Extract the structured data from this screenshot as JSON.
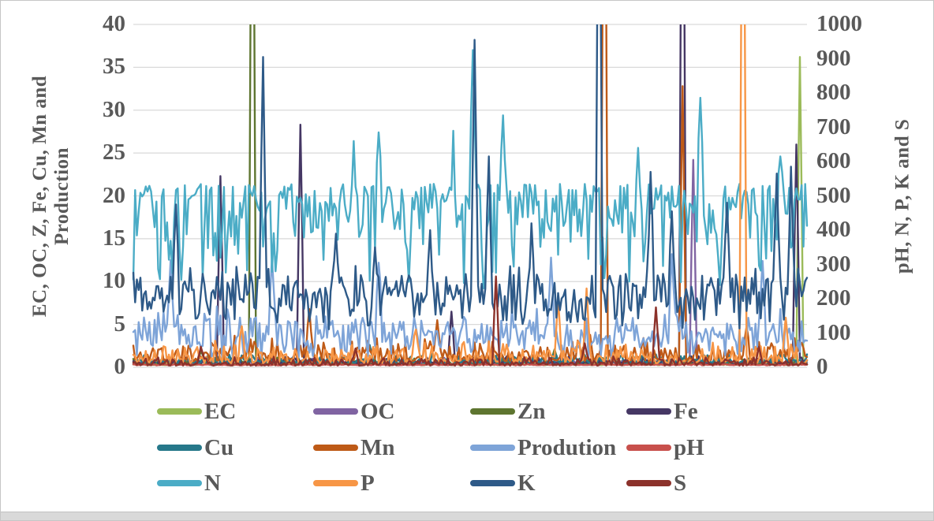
{
  "figure": {
    "background": "#FFFFFF",
    "border_color": "#C6C6C6",
    "bottom_strip_color": "#D9D9D9",
    "axis_text_color": "#595959",
    "grid_color": "#D9D9D9"
  },
  "chart_data": {
    "type": "line",
    "title": "",
    "x_points": 380,
    "grid": {
      "horizontal": true,
      "vertical": false,
      "color": "#D9D9D9"
    },
    "left_axis": {
      "title_line1": "EC, OC, Z, Fe, Cu, Mn and",
      "title_line2": "Production",
      "min": 0,
      "max": 40,
      "step": 5,
      "ticks": [
        40,
        35,
        30,
        25,
        20,
        15,
        10,
        5,
        0
      ]
    },
    "right_axis": {
      "title": "pH, N, P, K and S",
      "min": 0,
      "max": 1000,
      "step": 100,
      "ticks": [
        1000,
        900,
        800,
        700,
        600,
        500,
        400,
        300,
        200,
        100,
        0
      ]
    },
    "legend": {
      "position": "bottom",
      "items": [
        {
          "label": "EC",
          "color": "#9BBB59"
        },
        {
          "label": "OC",
          "color": "#8064A2"
        },
        {
          "label": "Zn",
          "color": "#5E7530"
        },
        {
          "label": "Fe",
          "color": "#453764"
        },
        {
          "label": "Cu",
          "color": "#26788A"
        },
        {
          "label": "Mn",
          "color": "#BE5A17"
        },
        {
          "label": "Prodution",
          "color": "#7EA4D8"
        },
        {
          "label": "pH",
          "color": "#C8504C"
        },
        {
          "label": "N",
          "color": "#4BACC6"
        },
        {
          "label": "P",
          "color": "#F79646"
        },
        {
          "label": "K",
          "color": "#2E5A88"
        },
        {
          "label": "S",
          "color": "#8C322B"
        }
      ]
    },
    "series": [
      {
        "name": "EC",
        "axis": "left",
        "color": "#9BBB59",
        "seed": 101,
        "profile": {
          "dist": "up",
          "base": 0.25,
          "range": 0.7
        },
        "spikes": [
          {
            "x": 0.99,
            "v": 36.2
          }
        ]
      },
      {
        "name": "OC",
        "axis": "left",
        "color": "#8064A2",
        "seed": 202,
        "profile": {
          "dist": "up",
          "base": 0.35,
          "range": 0.8
        },
        "spikes": [
          {
            "x": 0.83,
            "v": 24.2
          }
        ]
      },
      {
        "name": "Zn",
        "axis": "left",
        "color": "#5E7530",
        "seed": 303,
        "profile": {
          "dist": "up",
          "base": 0.3,
          "range": 0.9
        },
        "spikes": [
          {
            "x": 0.176,
            "v": 44,
            "flat": true
          },
          {
            "x": 0.1,
            "v": 1.9
          },
          {
            "x": 0.625,
            "v": 2.1
          }
        ]
      },
      {
        "name": "Fe",
        "axis": "left",
        "color": "#453764",
        "seed": 404,
        "profile": {
          "dist": "up",
          "base": 0.4,
          "range": 1.0
        },
        "spikes": [
          {
            "x": 0.129,
            "v": 22.3
          },
          {
            "x": 0.248,
            "v": 28.3
          },
          {
            "x": 0.471,
            "v": 6.5
          },
          {
            "x": 0.814,
            "v": 44,
            "flat": true
          },
          {
            "x": 0.983,
            "v": 26.0
          }
        ]
      },
      {
        "name": "Cu",
        "axis": "left",
        "color": "#26788A",
        "seed": 505,
        "profile": {
          "dist": "up",
          "base": 0.5,
          "range": 1.2
        },
        "spikes": [
          {
            "x": 0.35,
            "v": 2.6
          }
        ]
      },
      {
        "name": "Mn",
        "axis": "left",
        "color": "#BE5A17",
        "seed": 606,
        "profile": {
          "dist": "up",
          "base": 0.7,
          "range": 3.2
        },
        "spikes": [
          {
            "x": 0.26,
            "v": 6.8
          },
          {
            "x": 0.45,
            "v": 5.5
          },
          {
            "x": 0.698,
            "v": 44,
            "flat": true
          },
          {
            "x": 0.814,
            "v": 32.8
          },
          {
            "x": 0.91,
            "v": 4.8
          }
        ]
      },
      {
        "name": "Prodution",
        "axis": "left",
        "color": "#7EA4D8",
        "seed": 707,
        "profile": {
          "dist": "mid",
          "base": 3.9,
          "noise": 3.3
        },
        "spikes": [
          {
            "x": 0.055,
            "v": 12.5
          },
          {
            "x": 0.205,
            "v": 12.8
          },
          {
            "x": 0.365,
            "v": 12.2
          },
          {
            "x": 0.62,
            "v": 12.8
          },
          {
            "x": 0.8,
            "v": 13.2
          },
          {
            "x": 0.935,
            "v": 12.4
          }
        ]
      },
      {
        "name": "pH",
        "axis": "right",
        "color": "#C8504C",
        "seed": 808,
        "profile": {
          "dist": "mid",
          "base": 7.5,
          "noise": 2.0
        },
        "spikes": []
      },
      {
        "name": "N",
        "axis": "right",
        "color": "#4BACC6",
        "seed": 909,
        "profile": {
          "dist": "down",
          "base": 535,
          "range": 320
        },
        "spikes": [
          {
            "x": 0.328,
            "v": 660
          },
          {
            "x": 0.363,
            "v": 685
          },
          {
            "x": 0.476,
            "v": 690
          },
          {
            "x": 0.503,
            "v": 925
          },
          {
            "x": 0.549,
            "v": 735
          },
          {
            "x": 0.75,
            "v": 640
          },
          {
            "x": 0.843,
            "v": 786
          },
          {
            "x": 0.96,
            "v": 615
          },
          {
            "x": 0.07,
            "v": 255
          },
          {
            "x": 0.21,
            "v": 280
          },
          {
            "x": 0.41,
            "v": 250
          },
          {
            "x": 0.52,
            "v": 230
          },
          {
            "x": 0.7,
            "v": 260
          },
          {
            "x": 0.87,
            "v": 240
          }
        ]
      },
      {
        "name": "P",
        "axis": "right",
        "color": "#F79646",
        "seed": 1010,
        "profile": {
          "dist": "up",
          "base": 12,
          "range": 70
        },
        "spikes": [
          {
            "x": 0.16,
            "v": 120
          },
          {
            "x": 0.42,
            "v": 110
          },
          {
            "x": 0.63,
            "v": 200
          },
          {
            "x": 0.672,
            "v": 230
          },
          {
            "x": 0.905,
            "v": 1040,
            "flat": true
          },
          {
            "x": 0.968,
            "v": 145
          }
        ]
      },
      {
        "name": "K",
        "axis": "right",
        "color": "#2E5A88",
        "seed": 1111,
        "profile": {
          "dist": "mid",
          "base": 205,
          "noise": 100
        },
        "spikes": [
          {
            "x": 0.063,
            "v": 475
          },
          {
            "x": 0.192,
            "v": 905
          },
          {
            "x": 0.3,
            "v": 390
          },
          {
            "x": 0.36,
            "v": 350
          },
          {
            "x": 0.44,
            "v": 400
          },
          {
            "x": 0.507,
            "v": 955
          },
          {
            "x": 0.527,
            "v": 615
          },
          {
            "x": 0.592,
            "v": 420
          },
          {
            "x": 0.691,
            "v": 1040,
            "flat": true
          },
          {
            "x": 0.767,
            "v": 570
          },
          {
            "x": 0.8,
            "v": 455
          },
          {
            "x": 0.88,
            "v": 480
          },
          {
            "x": 0.955,
            "v": 565
          },
          {
            "x": 0.975,
            "v": 585
          }
        ]
      },
      {
        "name": "S",
        "axis": "right",
        "color": "#8C322B",
        "seed": 1212,
        "profile": {
          "dist": "up",
          "base": 5,
          "range": 27
        },
        "spikes": [
          {
            "x": 0.1,
            "v": 60
          },
          {
            "x": 0.33,
            "v": 55
          },
          {
            "x": 0.537,
            "v": 265
          },
          {
            "x": 0.67,
            "v": 70
          },
          {
            "x": 0.775,
            "v": 175
          },
          {
            "x": 0.93,
            "v": 60
          }
        ]
      }
    ]
  }
}
